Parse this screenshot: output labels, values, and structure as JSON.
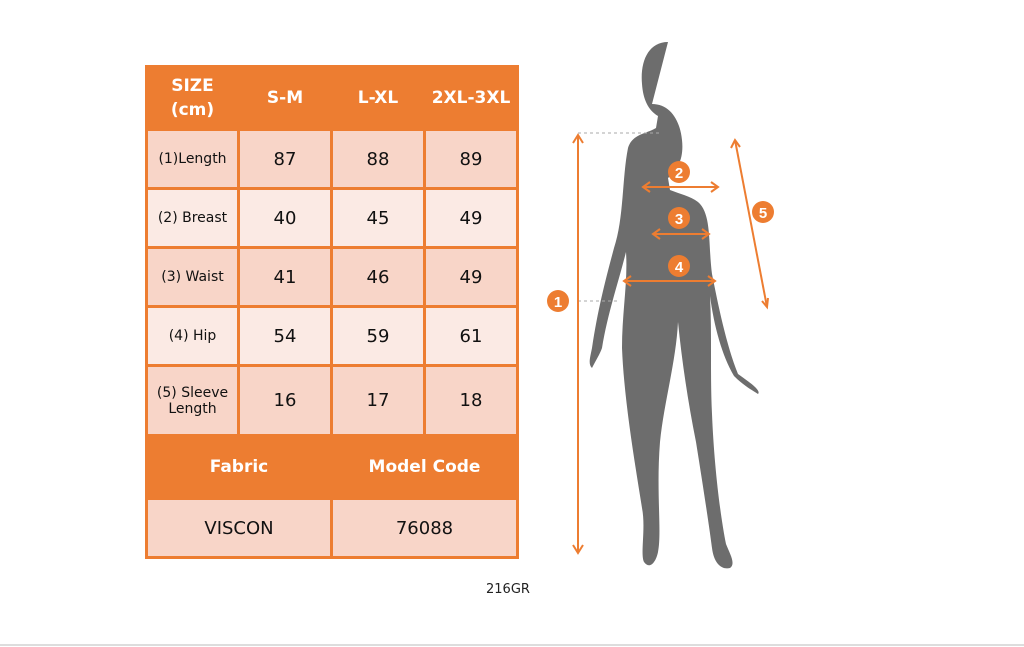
{
  "table": {
    "header": [
      "SIZE\n(cm)",
      "S-M",
      "L-XL",
      "2XL-3XL"
    ],
    "rows": [
      {
        "label": "(1)Length",
        "values": [
          "87",
          "88",
          "89"
        ]
      },
      {
        "label": "(2) Breast",
        "values": [
          "40",
          "45",
          "49"
        ]
      },
      {
        "label": "(3) Waist",
        "values": [
          "41",
          "46",
          "49"
        ]
      },
      {
        "label": "(4) Hip",
        "values": [
          "54",
          "59",
          "61"
        ]
      },
      {
        "label": "(5) Sleeve Length",
        "values": [
          "16",
          "17",
          "18"
        ]
      }
    ],
    "fabric_label": "Fabric",
    "model_code_label": "Model Code",
    "fabric": "VISCON",
    "model_code": "76088"
  },
  "code": "216GR",
  "figure": {
    "markers": [
      "1",
      "2",
      "3",
      "4",
      "5"
    ]
  },
  "colors": {
    "accent": "#ed7d31",
    "silhouette": "#6d6d6d",
    "row_dark": "#f8d5c8",
    "row_light": "#fbeae4"
  }
}
